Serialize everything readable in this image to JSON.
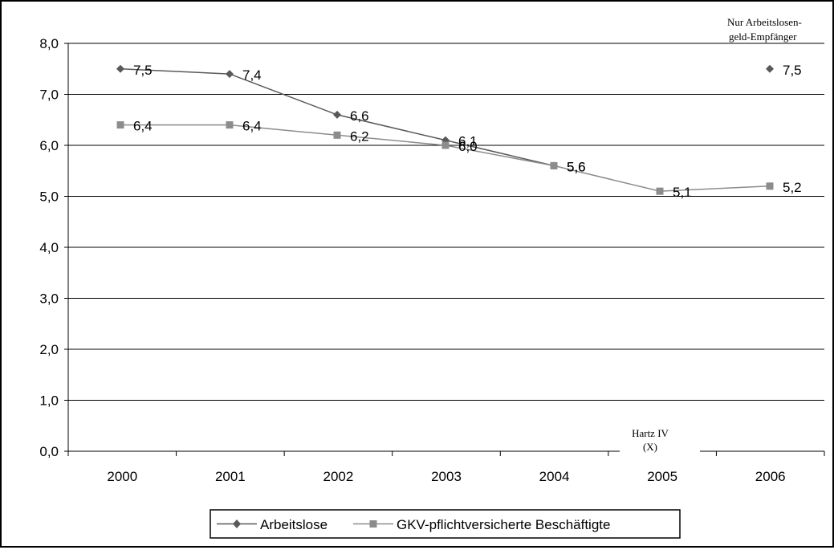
{
  "chart_data": {
    "type": "line",
    "categories": [
      "2000",
      "2001",
      "2002",
      "2003",
      "2004",
      "2005",
      "2006"
    ],
    "y_ticks": [
      "0,0",
      "1,0",
      "2,0",
      "3,0",
      "4,0",
      "5,0",
      "6,0",
      "7,0",
      "8,0"
    ],
    "ylim": [
      0,
      8
    ],
    "grid": true,
    "series": [
      {
        "name": "Arbeitslose",
        "color": "#595959",
        "marker": "diamond",
        "values": [
          7.5,
          7.4,
          6.6,
          6.1,
          5.6,
          null,
          null
        ],
        "labels": [
          "7,5",
          "7,4",
          "6,6",
          "6,1",
          "5,6",
          "",
          ""
        ]
      },
      {
        "name": "GKV-pflichtversicherte Beschäftigte",
        "color": "#8c8c8c",
        "marker": "square",
        "values": [
          6.4,
          6.4,
          6.2,
          6.0,
          5.6,
          5.1,
          5.2
        ],
        "labels": [
          "6,4",
          "6,4",
          "6,2",
          "6,0",
          "5,6",
          "5,1",
          "5,2"
        ]
      }
    ],
    "extra_point": {
      "series": "Arbeitslose",
      "category": "2006",
      "value": 7.5,
      "label": "7,5"
    },
    "annotations": {
      "top_right_line1": "Nur Arbeitslosen-",
      "top_right_line2": "geld-Empfänger",
      "axis_line1": "Hartz IV",
      "axis_line2": "(X)"
    },
    "legend_position": "bottom-center"
  }
}
